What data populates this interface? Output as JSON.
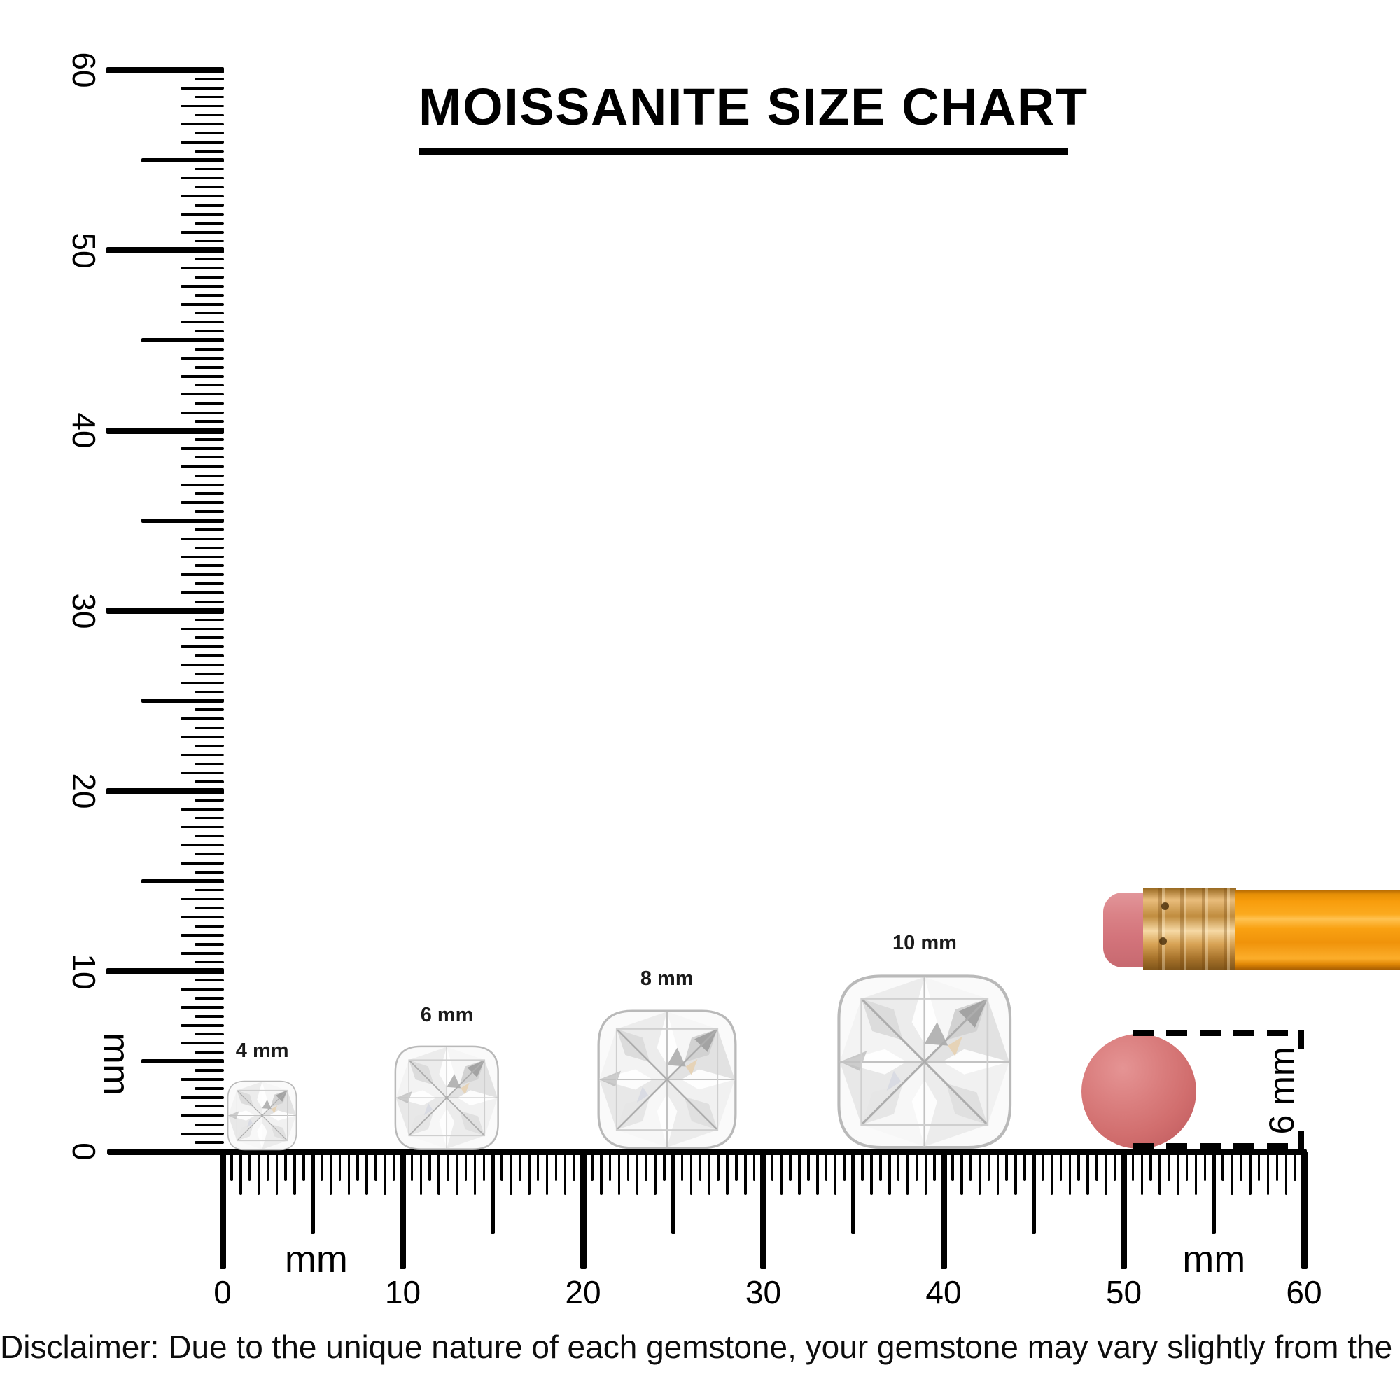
{
  "title": "MOISSANITE SIZE CHART",
  "disclaimer": "Disclaimer: Due to the unique nature of each gemstone, your gemstone may vary slightly from the picture shown.",
  "rulers": {
    "unit_label": "mm",
    "vertical": {
      "min_mm": 0,
      "max_mm": 60,
      "tick_step_mm": 0.5,
      "number_labels": [
        "0",
        "10",
        "20",
        "30",
        "40",
        "50",
        "60"
      ]
    },
    "horizontal": {
      "min_mm": 0,
      "max_mm": 60,
      "tick_step_mm": 0.5,
      "number_labels": [
        "0",
        "10",
        "20",
        "30",
        "40",
        "50",
        "60"
      ]
    }
  },
  "gems": [
    {
      "label": "4 mm",
      "size_mm": 4,
      "center_mm": 2.2
    },
    {
      "label": "6 mm",
      "size_mm": 6,
      "center_mm": 12.45
    },
    {
      "label": "8 mm",
      "size_mm": 8,
      "center_mm": 24.65
    },
    {
      "label": "10 mm",
      "size_mm": 10,
      "center_mm": 38.95
    }
  ],
  "eraser_reference": {
    "dimension_label": "6 mm",
    "diameter_mm": 6.4
  },
  "colors": {
    "ink": "#000000",
    "pencil_body_orange": "#f89d0c",
    "ferrule_gold": "#d8a355",
    "eraser_pink": "#d3747b",
    "eraser_top_red": "#d16e6e",
    "gem_fill": "#f4f4f4",
    "gem_line": "#b9b9b9"
  }
}
